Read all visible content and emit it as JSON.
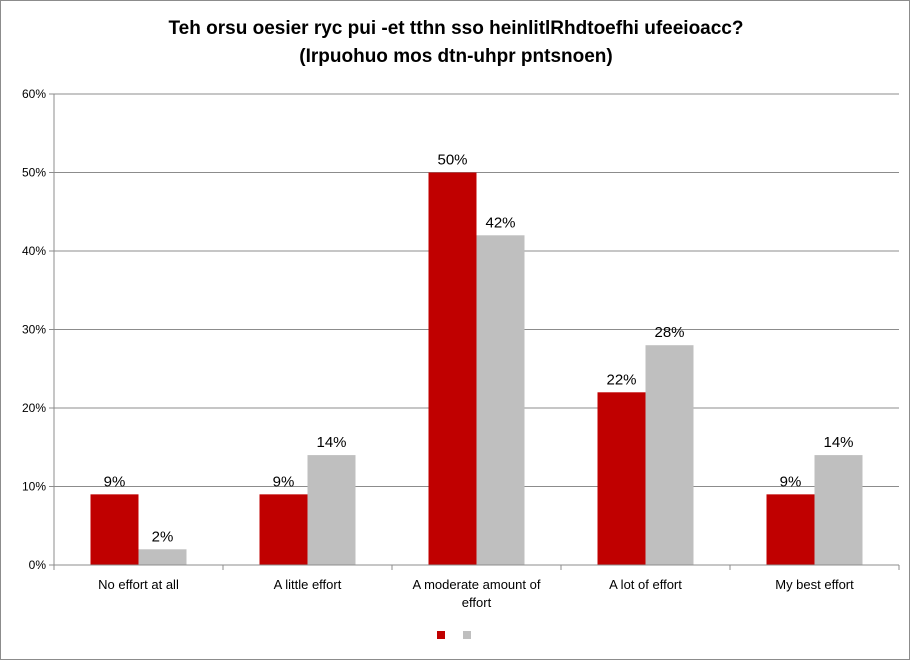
{
  "chart_data": {
    "type": "bar",
    "title_lines": [
      "Teh orsu oesier ryc pui -et tthn sso heinlitlRhdtoefhi ufeeioacc?",
      "(Irpuohuo mos dtn-uhpr pntsnoen)"
    ],
    "categories": [
      [
        "No effort at all"
      ],
      [
        "A little effort"
      ],
      [
        "A moderate amount of",
        "effort"
      ],
      [
        "A lot of effort"
      ],
      [
        "My best effort"
      ]
    ],
    "series": [
      {
        "values": [
          9,
          9,
          50,
          22,
          9
        ],
        "labels": [
          "9%",
          "9%",
          "50%",
          "22%",
          "9%"
        ],
        "color": "#c00000"
      },
      {
        "values": [
          2,
          14,
          42,
          28,
          14
        ],
        "labels": [
          "2%",
          "14%",
          "42%",
          "28%",
          "14%"
        ],
        "color": "#bfbfbf"
      }
    ],
    "y_ticks": [
      "0%",
      "10%",
      "20%",
      "30%",
      "40%",
      "50%",
      "60%"
    ],
    "ylim": [
      0,
      60
    ],
    "grid": true,
    "legend_position": "bottom",
    "colors": {
      "gridline": "#8c8c8c",
      "axis": "#8c8c8c"
    }
  }
}
